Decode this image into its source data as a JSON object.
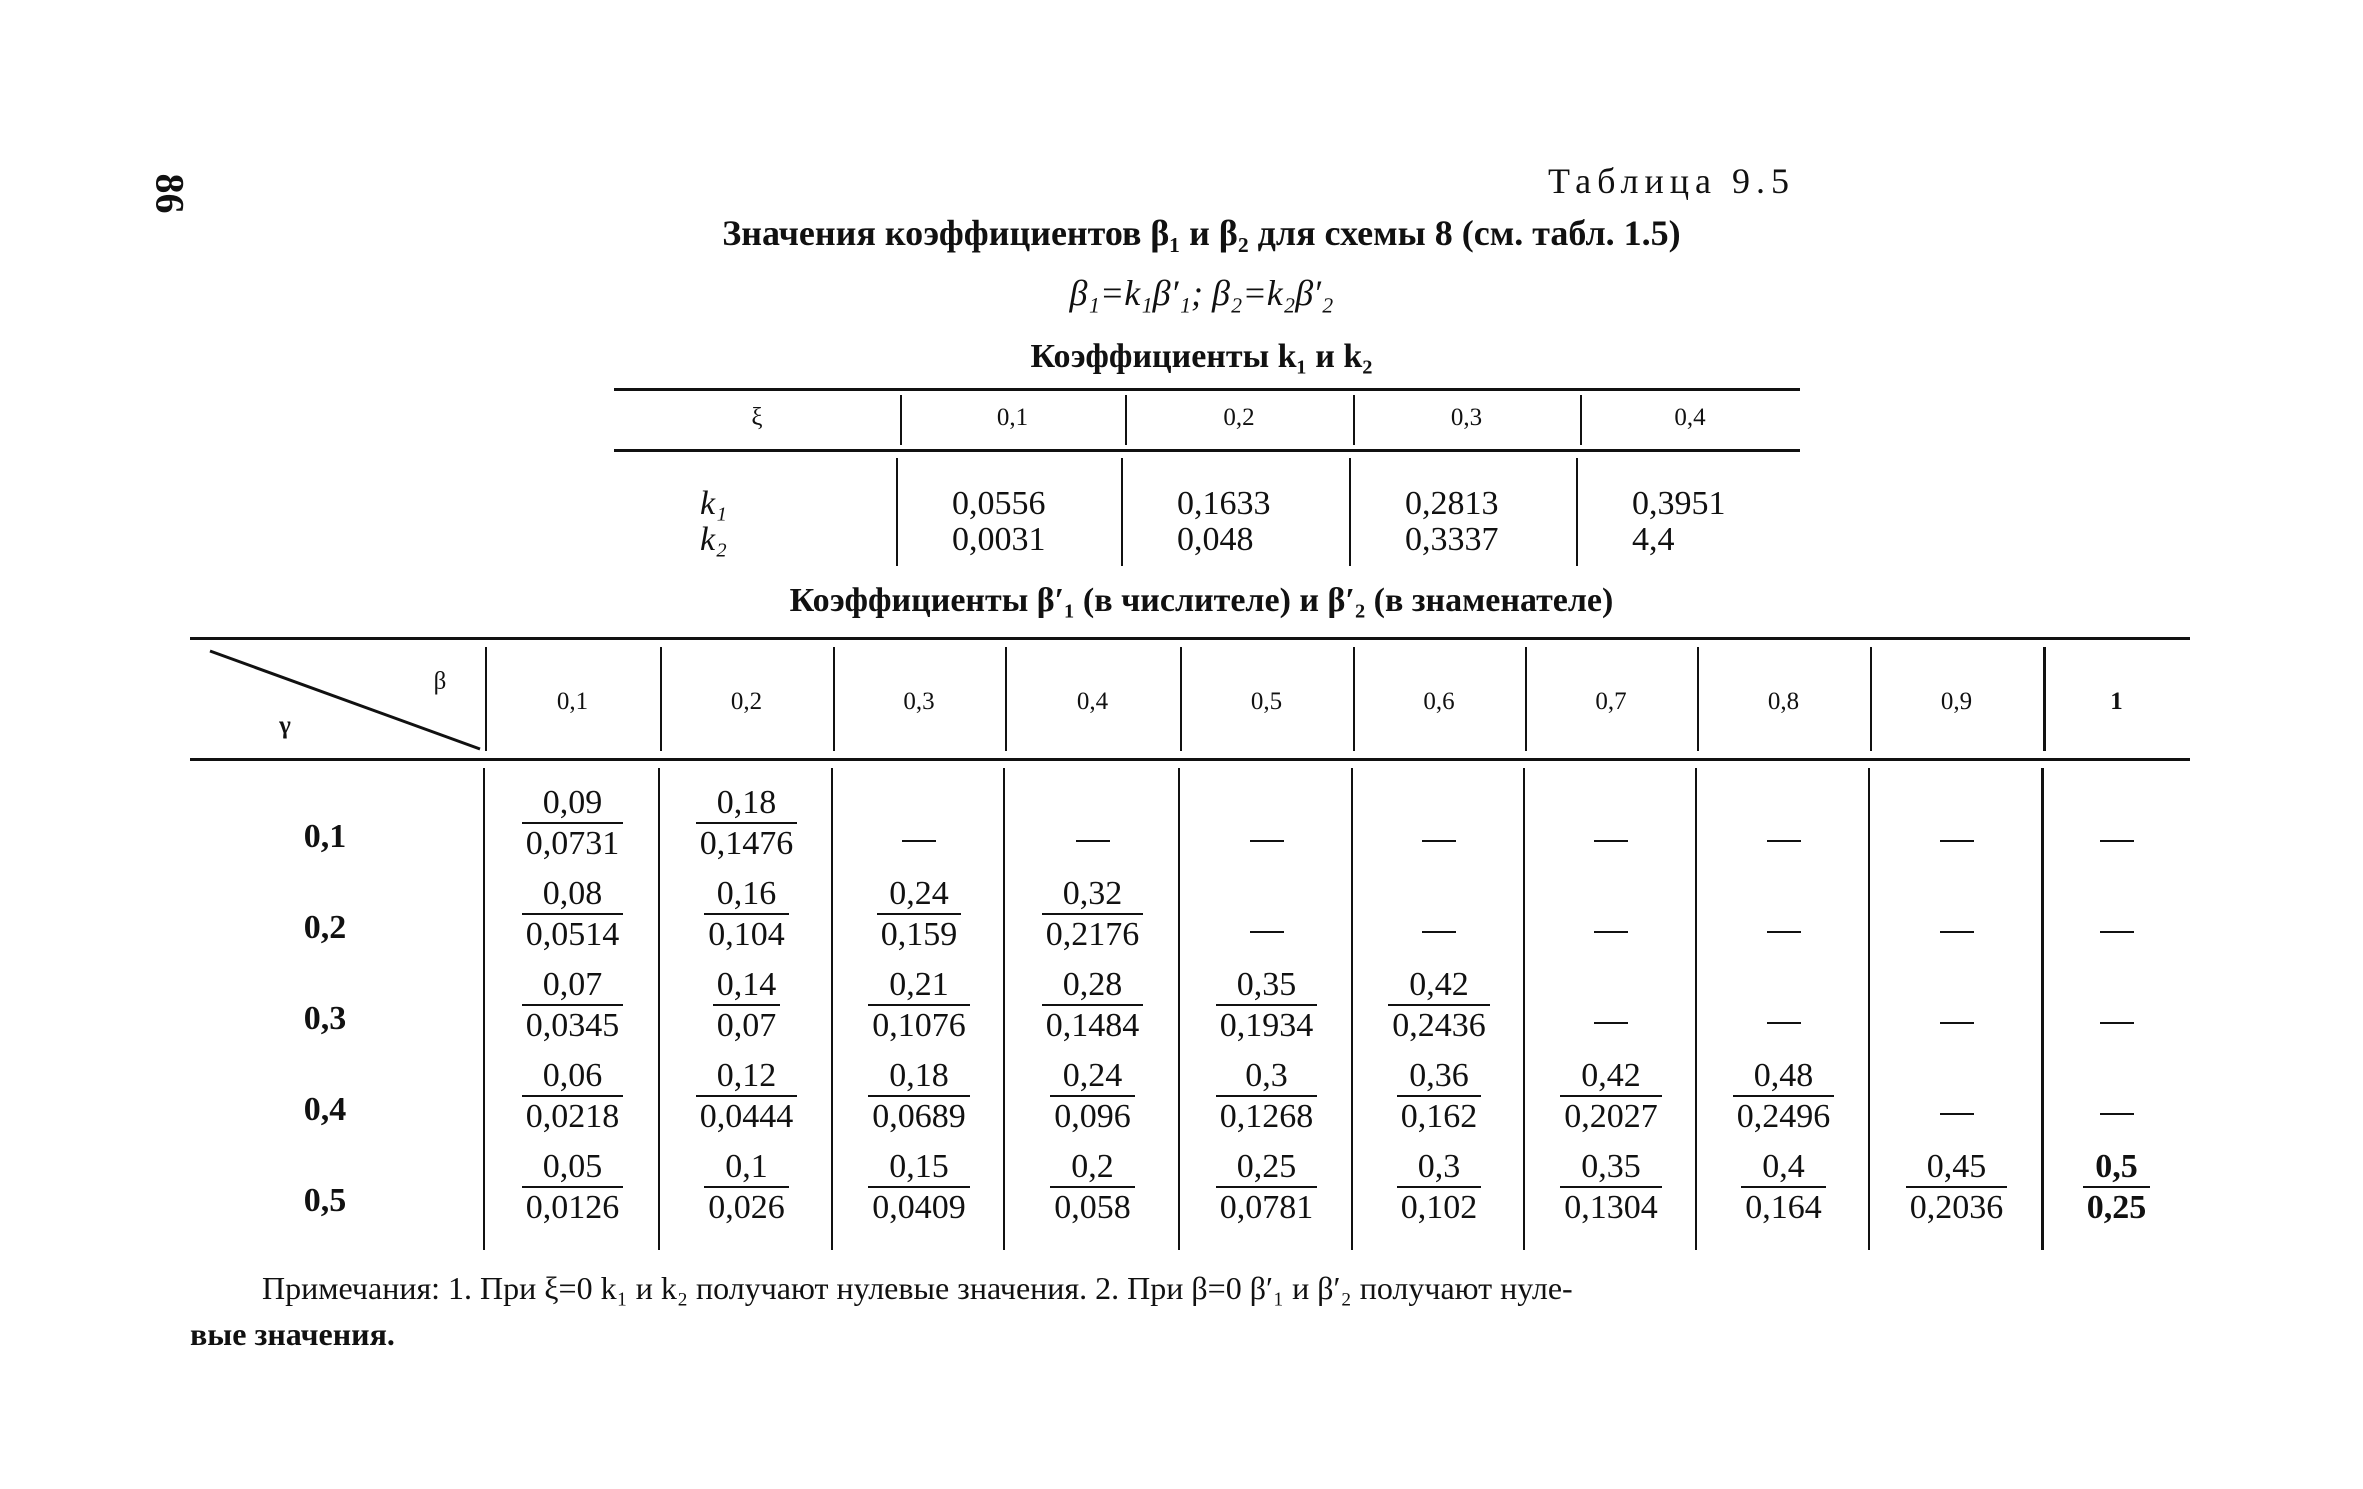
{
  "page_number": "86",
  "table_label": "Таблица 9.5",
  "title": "Значения коэффициентов β₁ и β₂ для схемы 8 (см. табл. 1.5)",
  "formula": "β₁=k₁β′₁;  β₂=k₂β′₂",
  "table1": {
    "caption": "Коэффициенты k₁ и k₂",
    "header_label": "ξ",
    "columns": [
      "0,1",
      "0,2",
      "0,3",
      "0,4"
    ],
    "row_labels": [
      "k₁",
      "k₂"
    ],
    "k1": [
      "0,0556",
      "0,1633",
      "0,2813",
      "0,3951"
    ],
    "k2": [
      "0,0031",
      "0,048",
      "0,3337",
      "4,4"
    ]
  },
  "table2": {
    "caption": "Коэффициенты β′₁ (в числителе) и β′₂ (в знаменателе)",
    "corner_top": "β",
    "corner_bottom": "γ",
    "columns": [
      "0,1",
      "0,2",
      "0,3",
      "0,4",
      "0,5",
      "0,6",
      "0,7",
      "0,8",
      "0,9",
      "1"
    ],
    "rows": [
      {
        "label": "0,1",
        "cells": [
          [
            "0,09",
            "0,0731"
          ],
          [
            "0,18",
            "0,1476"
          ],
          null,
          null,
          null,
          null,
          null,
          null,
          null,
          null
        ]
      },
      {
        "label": "0,2",
        "cells": [
          [
            "0,08",
            "0,0514"
          ],
          [
            "0,16",
            "0,104"
          ],
          [
            "0,24",
            "0,159"
          ],
          [
            "0,32",
            "0,2176"
          ],
          null,
          null,
          null,
          null,
          null,
          null
        ]
      },
      {
        "label": "0,3",
        "cells": [
          [
            "0,07",
            "0,0345"
          ],
          [
            "0,14",
            "0,07"
          ],
          [
            "0,21",
            "0,1076"
          ],
          [
            "0,28",
            "0,1484"
          ],
          [
            "0,35",
            "0,1934"
          ],
          [
            "0,42",
            "0,2436"
          ],
          null,
          null,
          null,
          null
        ]
      },
      {
        "label": "0,4",
        "cells": [
          [
            "0,06",
            "0,0218"
          ],
          [
            "0,12",
            "0,0444"
          ],
          [
            "0,18",
            "0,0689"
          ],
          [
            "0,24",
            "0,096"
          ],
          [
            "0,3",
            "0,1268"
          ],
          [
            "0,36",
            "0,162"
          ],
          [
            "0,42",
            "0,2027"
          ],
          [
            "0,48",
            "0,2496"
          ],
          null,
          null
        ]
      },
      {
        "label": "0,5",
        "cells": [
          [
            "0,05",
            "0,0126"
          ],
          [
            "0,1",
            "0,026"
          ],
          [
            "0,15",
            "0,0409"
          ],
          [
            "0,2",
            "0,058"
          ],
          [
            "0,25",
            "0,0781"
          ],
          [
            "0,3",
            "0,102"
          ],
          [
            "0,35",
            "0,1304"
          ],
          [
            "0,4",
            "0,164"
          ],
          [
            "0,45",
            "0,2036"
          ],
          [
            "0,5",
            "0,25"
          ]
        ]
      }
    ]
  },
  "notes": {
    "line1": "Примечания: 1. При ξ=0 k₁ и k₂ получают нулевые значения. 2. При β=0 β′₁ и β′₂ получают нуле-",
    "line2": "вые значения."
  }
}
